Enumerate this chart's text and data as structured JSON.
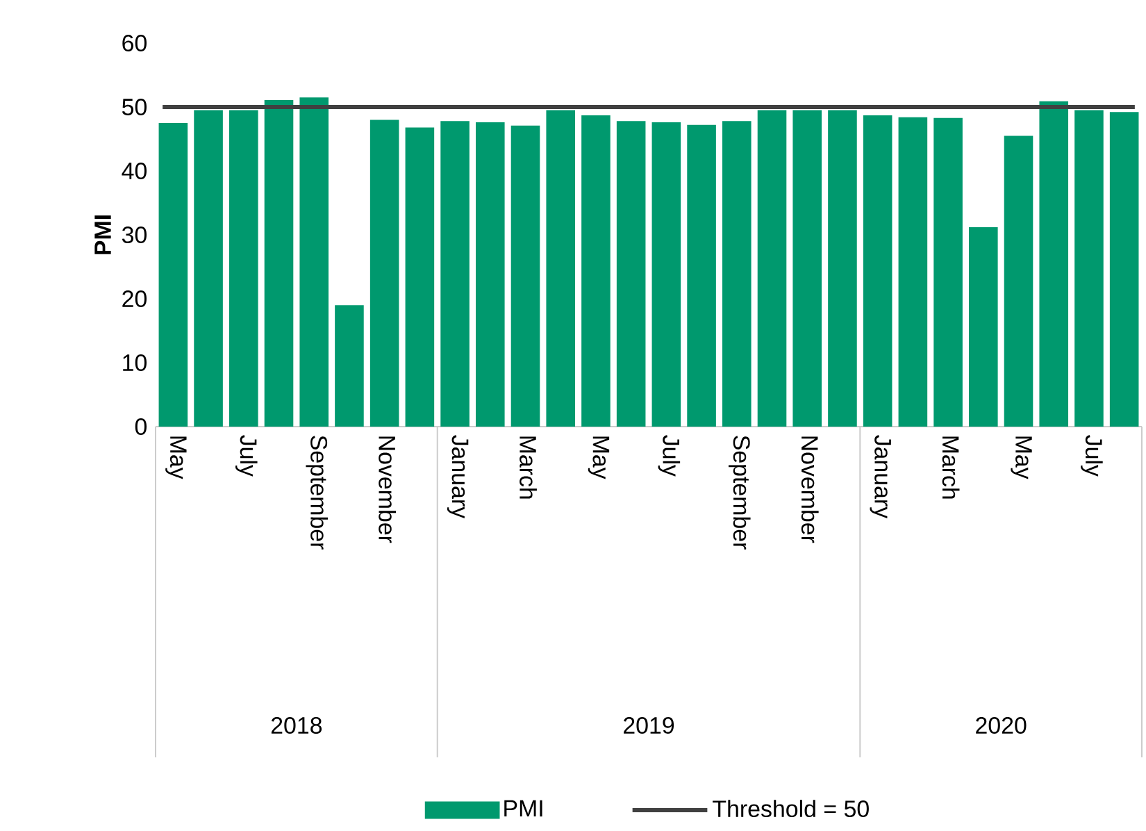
{
  "chart_data": {
    "type": "bar",
    "ylabel": "PMI",
    "categories": [
      "May",
      null,
      "July",
      null,
      "September",
      null,
      "November",
      null,
      "January",
      null,
      "March",
      null,
      "May",
      null,
      "July",
      null,
      "September",
      null,
      "November",
      null,
      "January",
      null,
      "March",
      null,
      "May",
      null,
      "July",
      null
    ],
    "series": [
      {
        "name": "PMI",
        "color": "#00996e",
        "values": [
          47.5,
          49.5,
          49.5,
          51.1,
          51.5,
          19.0,
          48.0,
          46.8,
          47.8,
          47.6,
          47.1,
          49.5,
          48.7,
          47.8,
          47.6,
          47.2,
          47.8,
          49.5,
          49.5,
          49.5,
          48.7,
          48.4,
          48.3,
          31.2,
          45.5,
          50.9,
          49.5,
          49.2
        ]
      }
    ],
    "ylim": [
      0,
      60
    ],
    "yticks": [
      0,
      10,
      20,
      30,
      40,
      50,
      60
    ],
    "ref_lines": [
      {
        "axis": "y",
        "value": 50,
        "label": "Threshold = 50",
        "color": "#404040"
      }
    ],
    "annotations": [
      "2018",
      "2019",
      "2020"
    ],
    "legend": "bottom",
    "grid": false
  }
}
